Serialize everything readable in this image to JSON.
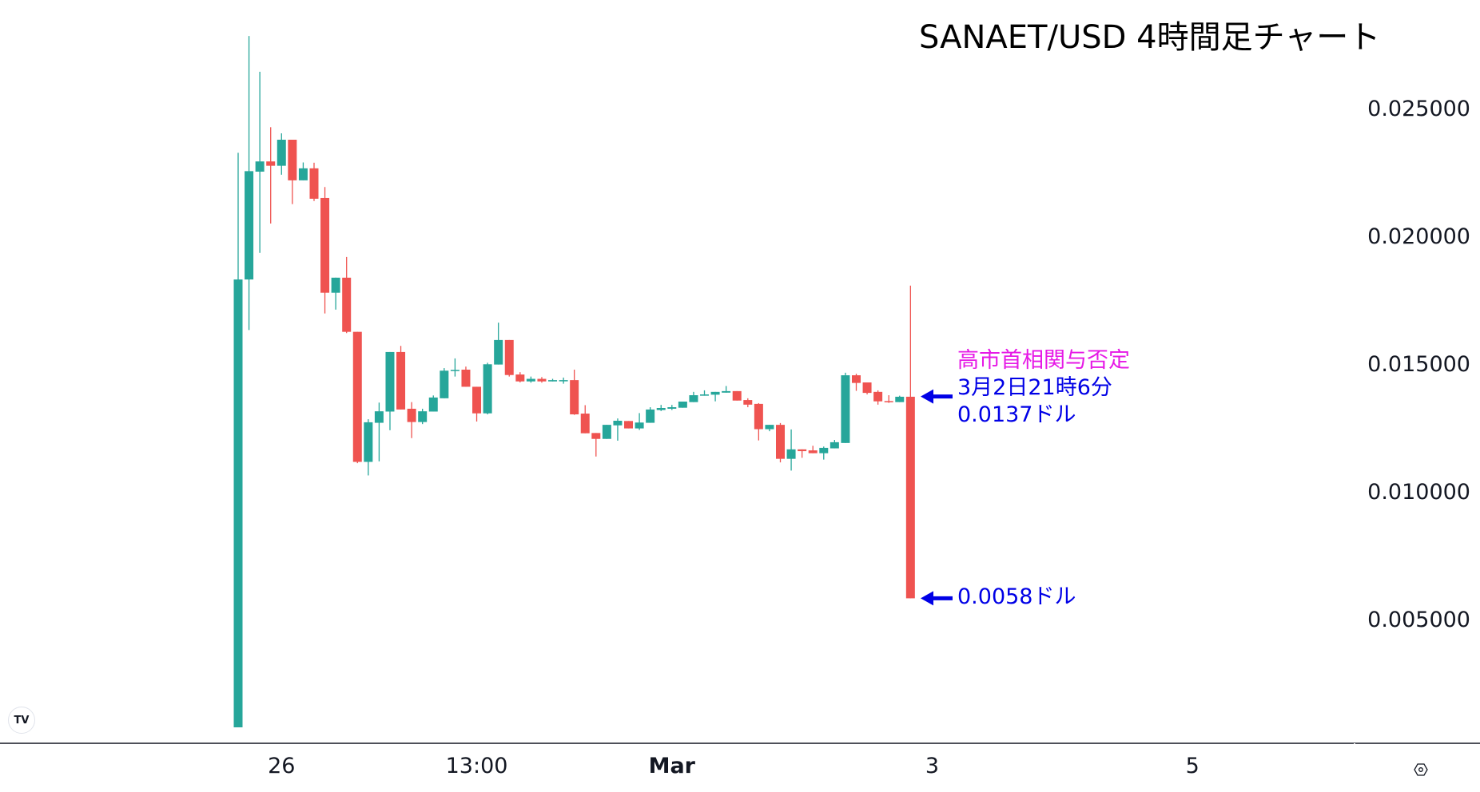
{
  "chart_data": {
    "type": "candlestick",
    "title": "SANAET/USD 4時間足チャート",
    "colors": {
      "up": "#26a69a",
      "down": "#ef5350",
      "annotation_title": "#e619e6",
      "annotation_text": "#0000e6",
      "arrow": "#0000e6"
    },
    "ylim": [
      0.0,
      0.0275
    ],
    "y_ticks": [
      "0.025000",
      "0.020000",
      "0.015000",
      "0.010000",
      "0.005000"
    ],
    "x_ticks": [
      {
        "label": "26",
        "bar": 4
      },
      {
        "label": "13:00",
        "bar": 22
      },
      {
        "label": "Mar",
        "bar": 40,
        "bold": true
      },
      {
        "label": "3",
        "bar": 64
      },
      {
        "label": "5",
        "bar": 88
      }
    ],
    "grid": false,
    "candles": [
      [
        0.00075,
        0.02324,
        0.00075,
        0.01828
      ],
      [
        0.01828,
        0.02781,
        0.0163,
        0.02252
      ],
      [
        0.0225,
        0.02641,
        0.01932,
        0.0229
      ],
      [
        0.0229,
        0.02424,
        0.02047,
        0.02273
      ],
      [
        0.02273,
        0.024,
        0.02238,
        0.02375
      ],
      [
        0.02375,
        0.02375,
        0.02123,
        0.02216
      ],
      [
        0.02216,
        0.02286,
        0.02216,
        0.02263
      ],
      [
        0.02263,
        0.02285,
        0.02135,
        0.02144
      ],
      [
        0.02147,
        0.0219,
        0.01695,
        0.01776
      ],
      [
        0.01776,
        0.01835,
        0.0171,
        0.01835
      ],
      [
        0.01835,
        0.01916,
        0.01618,
        0.01623
      ],
      [
        0.01623,
        0.01623,
        0.01109,
        0.01114
      ],
      [
        0.01114,
        0.01281,
        0.01061,
        0.01269
      ],
      [
        0.01267,
        0.01346,
        0.01116,
        0.01312
      ],
      [
        0.01311,
        0.01544,
        0.01238,
        0.01544
      ],
      [
        0.01544,
        0.01568,
        0.01319,
        0.01319
      ],
      [
        0.01322,
        0.01348,
        0.01207,
        0.0127
      ],
      [
        0.0127,
        0.01322,
        0.01262,
        0.01312
      ],
      [
        0.01311,
        0.01374,
        0.01311,
        0.01366
      ],
      [
        0.01363,
        0.01481,
        0.01363,
        0.01471
      ],
      [
        0.0147,
        0.01519,
        0.01448,
        0.01474
      ],
      [
        0.01475,
        0.01487,
        0.01408,
        0.01408
      ],
      [
        0.01408,
        0.01408,
        0.01272,
        0.01304
      ],
      [
        0.01304,
        0.01502,
        0.013,
        0.01496
      ],
      [
        0.01495,
        0.01659,
        0.01495,
        0.01591
      ],
      [
        0.01591,
        0.01591,
        0.01448,
        0.01454
      ],
      [
        0.01456,
        0.01465,
        0.01425,
        0.01429
      ],
      [
        0.01429,
        0.01448,
        0.01424,
        0.01439
      ],
      [
        0.01439,
        0.01446,
        0.01424,
        0.01429
      ],
      [
        0.01429,
        0.01439,
        0.01429,
        0.01434
      ],
      [
        0.01432,
        0.01444,
        0.0142,
        0.01434
      ],
      [
        0.01434,
        0.01475,
        0.01298,
        0.013
      ],
      [
        0.01303,
        0.01336,
        0.01226,
        0.01226
      ],
      [
        0.01227,
        0.01227,
        0.01135,
        0.01204
      ],
      [
        0.01204,
        0.01259,
        0.01204,
        0.01259
      ],
      [
        0.01257,
        0.01284,
        0.01197,
        0.01275
      ],
      [
        0.01274,
        0.01274,
        0.01245,
        0.01245
      ],
      [
        0.01245,
        0.01305,
        0.01239,
        0.01268
      ],
      [
        0.01267,
        0.01328,
        0.01267,
        0.01319
      ],
      [
        0.01317,
        0.01337,
        0.01313,
        0.01325
      ],
      [
        0.01322,
        0.01337,
        0.01317,
        0.01328
      ],
      [
        0.01326,
        0.0135,
        0.01326,
        0.0135
      ],
      [
        0.01348,
        0.01388,
        0.01348,
        0.01375
      ],
      [
        0.01373,
        0.01394,
        0.01373,
        0.01378
      ],
      [
        0.01377,
        0.01388,
        0.01351,
        0.01388
      ],
      [
        0.01385,
        0.01411,
        0.01385,
        0.01391
      ],
      [
        0.01391,
        0.01391,
        0.01354,
        0.01354
      ],
      [
        0.01356,
        0.01363,
        0.01328,
        0.01338
      ],
      [
        0.01341,
        0.01344,
        0.01198,
        0.01242
      ],
      [
        0.01242,
        0.01259,
        0.01234,
        0.01259
      ],
      [
        0.01259,
        0.01266,
        0.01112,
        0.01126
      ],
      [
        0.01126,
        0.01241,
        0.0108,
        0.01163
      ],
      [
        0.01163,
        0.01163,
        0.0113,
        0.01156
      ],
      [
        0.01159,
        0.01177,
        0.01148,
        0.01148
      ],
      [
        0.01148,
        0.01174,
        0.01123,
        0.01169
      ],
      [
        0.01167,
        0.012,
        0.01167,
        0.01191
      ],
      [
        0.01188,
        0.01463,
        0.01188,
        0.01453
      ],
      [
        0.01453,
        0.01459,
        0.01392,
        0.01423
      ],
      [
        0.01425,
        0.01425,
        0.01378,
        0.01384
      ],
      [
        0.01388,
        0.01394,
        0.01338,
        0.01351
      ],
      [
        0.01352,
        0.01375,
        0.01345,
        0.0135
      ],
      [
        0.01348,
        0.01373,
        0.01348,
        0.01369
      ],
      [
        0.01369,
        0.01804,
        0.0058,
        0.0058
      ]
    ],
    "candle_format": [
      "open",
      "high",
      "low",
      "close"
    ],
    "annotations": [
      {
        "price": 0.0137,
        "lines": [
          "高市首相関与否定",
          "3月2日21時6分",
          "0.0137ドル"
        ]
      },
      {
        "price": 0.0058,
        "lines": [
          "0.0058ドル"
        ]
      }
    ]
  },
  "branding": {
    "logo": "TV"
  },
  "icons": {
    "settings": "settings-hex-icon",
    "logo": "tradingview-logo-icon"
  }
}
